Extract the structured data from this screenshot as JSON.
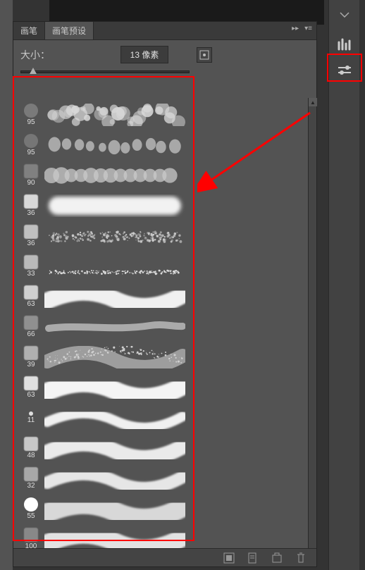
{
  "tabs": {
    "brush": "画笔",
    "brush_presets": "画笔预设"
  },
  "size": {
    "label": "大小：",
    "value": "13",
    "unit": "像素"
  },
  "brushes": [
    {
      "size": "95",
      "thumb_shape": "blob",
      "thumb_color": "#7a7a7a",
      "stroke_type": "bokeh",
      "stroke_color": "#d8d8d8",
      "stroke_width": 26
    },
    {
      "size": "95",
      "thumb_shape": "blob",
      "thumb_color": "#767676",
      "stroke_type": "drops",
      "stroke_color": "#a8a8a8",
      "stroke_width": 22
    },
    {
      "size": "90",
      "thumb_shape": "tex",
      "thumb_color": "#808080",
      "stroke_type": "scrub",
      "stroke_color": "#cacaca",
      "stroke_width": 24
    },
    {
      "size": "36",
      "thumb_shape": "tex",
      "thumb_color": "#d8d8d8",
      "stroke_type": "soft",
      "stroke_color": "#f2f2f2",
      "stroke_width": 26
    },
    {
      "size": "36",
      "thumb_shape": "tex",
      "thumb_color": "#c0c0c0",
      "stroke_type": "grain",
      "stroke_color": "#cacaca",
      "stroke_width": 16
    },
    {
      "size": "33",
      "thumb_shape": "tex",
      "thumb_color": "#bababa",
      "stroke_type": "spatter",
      "stroke_color": "#dadada",
      "stroke_width": 8
    },
    {
      "size": "63",
      "thumb_shape": "tex",
      "thumb_color": "#d0d0d0",
      "stroke_type": "wave",
      "stroke_color": "#f0f0f0",
      "stroke_width": 24
    },
    {
      "size": "66",
      "thumb_shape": "tex",
      "thumb_color": "#909090",
      "stroke_type": "thin",
      "stroke_color": "#bababa",
      "stroke_width": 10
    },
    {
      "size": "39",
      "thumb_shape": "tex",
      "thumb_color": "#b0b0b0",
      "stroke_type": "rough",
      "stroke_color": "#cfcfcf",
      "stroke_width": 20
    },
    {
      "size": "63",
      "thumb_shape": "tex",
      "thumb_color": "#e0e0e0",
      "stroke_type": "wave",
      "stroke_color": "#f4f4f4",
      "stroke_width": 26
    },
    {
      "size": "11",
      "thumb_shape": "dot",
      "thumb_color": "#dedede",
      "stroke_type": "wave",
      "stroke_color": "#f0f0f0",
      "stroke_width": 14
    },
    {
      "size": "48",
      "thumb_shape": "tex",
      "thumb_color": "#c8c8c8",
      "stroke_type": "wave",
      "stroke_color": "#eaeaea",
      "stroke_width": 22
    },
    {
      "size": "32",
      "thumb_shape": "tex",
      "thumb_color": "#a8a8a8",
      "stroke_type": "wave",
      "stroke_color": "#e6e6e6",
      "stroke_width": 18
    },
    {
      "size": "55",
      "thumb_shape": "circle",
      "thumb_color": "#ffffff",
      "stroke_type": "wave",
      "stroke_color": "#d8d8d8",
      "stroke_width": 28
    },
    {
      "size": "100",
      "thumb_shape": "tex",
      "thumb_color": "#888888",
      "stroke_type": "wave",
      "stroke_color": "#e2e2e2",
      "stroke_width": 26
    }
  ],
  "colors": {
    "panel_bg": "#535353",
    "dark_bg": "#1a1a1a",
    "highlight": "#ff0000",
    "arrow": "#ff0000"
  },
  "annotations": {
    "arrow_from": [
      440,
      160
    ],
    "arrow_to": [
      296,
      258
    ]
  }
}
